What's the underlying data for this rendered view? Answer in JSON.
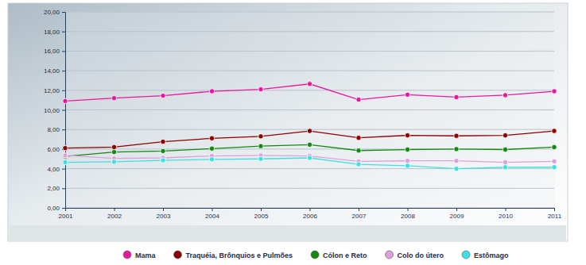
{
  "chart_data": {
    "type": "line",
    "x": [
      2001,
      2002,
      2003,
      2004,
      2005,
      2006,
      2007,
      2008,
      2009,
      2010,
      2011
    ],
    "xlim": [
      2001,
      2011
    ],
    "xticks": [
      2001,
      2002,
      2003,
      2004,
      2005,
      2006,
      2007,
      2008,
      2009,
      2010,
      2011
    ],
    "ylim": [
      0,
      20
    ],
    "yticks": [
      {
        "value": 0,
        "label": "0,00"
      },
      {
        "value": 2,
        "label": "2,00"
      },
      {
        "value": 4,
        "label": "4,00"
      },
      {
        "value": 6,
        "label": "6,00"
      },
      {
        "value": 8,
        "label": "8,00"
      },
      {
        "value": 10,
        "label": "10,00"
      },
      {
        "value": 12,
        "label": "12,00"
      },
      {
        "value": 14,
        "label": "14,00"
      },
      {
        "value": 16,
        "label": "16,00"
      },
      {
        "value": 18,
        "label": "18,00"
      },
      {
        "value": 20,
        "label": "20,00"
      }
    ],
    "grid": true,
    "legend": "bottom",
    "marker": "circle",
    "line_style": "solid",
    "series": [
      {
        "name": "Mama",
        "color": "#e6199e",
        "values": [
          10.9,
          11.2,
          11.45,
          11.9,
          12.1,
          12.65,
          11.05,
          11.55,
          11.3,
          11.5,
          11.9
        ]
      },
      {
        "name": "Traquéia, Brônquios e Pulmões",
        "color": "#8b0000",
        "values": [
          6.1,
          6.2,
          6.75,
          7.1,
          7.3,
          7.85,
          7.15,
          7.4,
          7.35,
          7.4,
          7.85
        ]
      },
      {
        "name": "Cólon e Reto",
        "color": "#128a12",
        "values": [
          5.25,
          5.7,
          5.8,
          6.05,
          6.3,
          6.45,
          5.85,
          5.95,
          6.0,
          5.95,
          6.2
        ]
      },
      {
        "name": "Colo do útero",
        "color": "#dda0dd",
        "values": [
          5.35,
          5.05,
          5.1,
          5.3,
          5.35,
          5.3,
          4.75,
          4.8,
          4.8,
          4.65,
          4.75
        ]
      },
      {
        "name": "Estômago",
        "color": "#40e0e0",
        "values": [
          4.65,
          4.7,
          4.85,
          4.95,
          5.0,
          5.1,
          4.45,
          4.3,
          4.0,
          4.15,
          4.15
        ]
      }
    ]
  }
}
